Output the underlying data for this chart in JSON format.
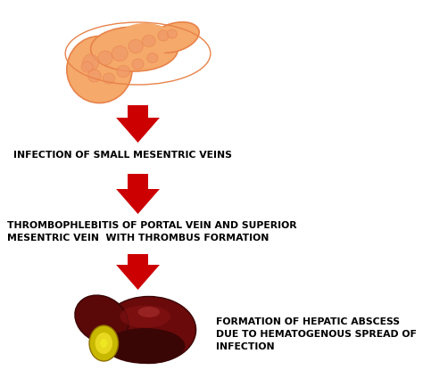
{
  "background_color": "#ffffff",
  "arrow_color": "#cc0000",
  "text_color": "#000000",
  "label1": "INFECTION OF SMALL MESENTRIC VEINS",
  "label2_line1": "THROMBOPHLEBITIS OF PORTAL VEIN AND SUPERIOR",
  "label2_line2": "MESENTRIC VEIN  WITH THROMBUS FORMATION",
  "label3_line1": "FORMATION OF HEPATIC ABSCESS",
  "label3_line2": "DUE TO HEMATOGENOUS SPREAD OF",
  "label3_line3": "INFECTION",
  "font_size_labels": 7.8,
  "font_weight": "bold",
  "pancreas_color_main": "#F5A96B",
  "pancreas_color_dark": "#E8834A",
  "pancreas_color_lobule": "#F0986A",
  "liver_color_main": "#6B0A0A",
  "liver_color_dark": "#3A0505",
  "liver_color_highlight": "#8B1515",
  "abscess_color": "#C8B800",
  "abscess_inner": "#E8D820"
}
